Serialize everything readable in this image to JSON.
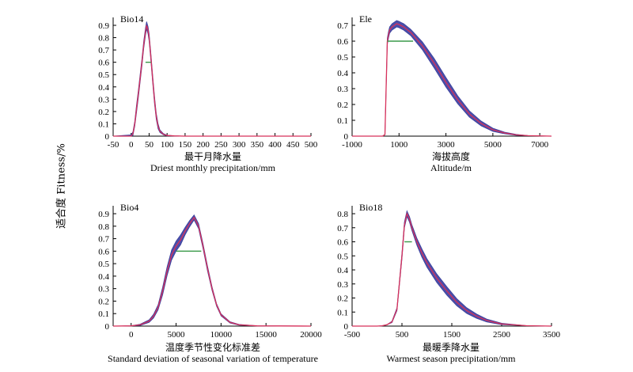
{
  "figure": {
    "ylabel": "适合度 Fitness/%"
  },
  "chart_data": [
    {
      "type": "line",
      "title": "Bio14",
      "xlabel_cn": "最干月降水量",
      "xlabel_en": "Driest monthly precipitation/mm",
      "ylabel": "适合度 Fitness/%",
      "xlim": [
        -50,
        500
      ],
      "ylim": [
        0,
        0.9
      ],
      "xticks": [
        -50,
        0,
        50,
        100,
        150,
        200,
        250,
        300,
        350,
        400,
        450,
        500
      ],
      "yticks": [
        0,
        0.1,
        0.2,
        0.3,
        0.4,
        0.5,
        0.6,
        0.7,
        0.8,
        0.9
      ],
      "grid": false,
      "threshold": {
        "y": 0.6,
        "x": [
          40,
          55
        ]
      },
      "series": [
        {
          "x": [
            -50,
            0,
            5,
            10,
            15,
            20,
            25,
            30,
            35,
            40,
            43,
            47,
            50,
            55,
            60,
            65,
            70,
            75,
            80,
            90,
            100,
            120,
            150,
            500
          ],
          "y": [
            0,
            0,
            0.02,
            0.1,
            0.22,
            0.34,
            0.47,
            0.6,
            0.74,
            0.85,
            0.9,
            0.86,
            0.8,
            0.64,
            0.46,
            0.29,
            0.16,
            0.08,
            0.04,
            0.015,
            0.005,
            0.002,
            0,
            0
          ],
          "band": [
            0,
            0.01,
            0.015,
            0.02,
            0.03,
            0.03,
            0.03,
            0.03,
            0.03,
            0.03,
            0.03,
            0.03,
            0.03,
            0.03,
            0.03,
            0.03,
            0.025,
            0.02,
            0.01,
            0.005,
            0.003,
            0,
            0,
            0
          ]
        }
      ]
    },
    {
      "type": "line",
      "title": "Ele",
      "xlabel_cn": "海拔高度",
      "xlabel_en": "Altitude/m",
      "ylabel": "适合度 Fitness/%",
      "xlim": [
        -1000,
        7500
      ],
      "ylim": [
        0,
        0.7
      ],
      "xticks": [
        -1000,
        1000,
        3000,
        5000,
        7000
      ],
      "yticks": [
        0,
        0.1,
        0.2,
        0.3,
        0.4,
        0.5,
        0.6,
        0.7
      ],
      "grid": false,
      "threshold": {
        "y": 0.6,
        "x": [
          500,
          1600
        ]
      },
      "series": [
        {
          "x": [
            -1000,
            300,
            400,
            500,
            550,
            600,
            700,
            800,
            900,
            1000,
            1200,
            1500,
            2000,
            2500,
            3000,
            3500,
            4000,
            4500,
            5000,
            5500,
            6000,
            6500,
            7500
          ],
          "y": [
            0,
            0,
            0.01,
            0.6,
            0.64,
            0.67,
            0.69,
            0.7,
            0.71,
            0.705,
            0.69,
            0.655,
            0.57,
            0.46,
            0.34,
            0.23,
            0.14,
            0.08,
            0.04,
            0.02,
            0.008,
            0.003,
            0
          ],
          "band": [
            0,
            0,
            0,
            0.02,
            0.02,
            0.02,
            0.02,
            0.02,
            0.02,
            0.02,
            0.02,
            0.02,
            0.025,
            0.03,
            0.03,
            0.025,
            0.02,
            0.015,
            0.01,
            0.005,
            0.003,
            0,
            0
          ]
        }
      ]
    },
    {
      "type": "line",
      "title": "Bio4",
      "xlabel_cn": "温度季节性变化标准差",
      "xlabel_en": "Standard deviation of seasonal variation of temperature",
      "ylabel": "适合度 Fitness/%",
      "xlim": [
        -2000,
        20000
      ],
      "ylim": [
        0,
        0.9
      ],
      "xticks": [
        0,
        5000,
        10000,
        15000,
        20000
      ],
      "yticks": [
        0,
        0.1,
        0.2,
        0.3,
        0.4,
        0.5,
        0.6,
        0.7,
        0.8,
        0.9
      ],
      "grid": false,
      "threshold": {
        "y": 0.6,
        "x": [
          5000,
          7800
        ]
      },
      "series": [
        {
          "x": [
            -2000,
            0,
            1000,
            2000,
            2500,
            3000,
            3500,
            4000,
            4500,
            5000,
            5500,
            6000,
            6500,
            7000,
            7500,
            8000,
            8500,
            9000,
            9500,
            10000,
            11000,
            12000,
            14000,
            20000
          ],
          "y": [
            0,
            0.002,
            0.01,
            0.04,
            0.08,
            0.15,
            0.28,
            0.44,
            0.57,
            0.64,
            0.69,
            0.76,
            0.82,
            0.87,
            0.8,
            0.64,
            0.46,
            0.3,
            0.17,
            0.09,
            0.03,
            0.01,
            0.002,
            0
          ],
          "band": [
            0,
            0,
            0.005,
            0.01,
            0.015,
            0.02,
            0.03,
            0.035,
            0.04,
            0.04,
            0.04,
            0.03,
            0.025,
            0.02,
            0.02,
            0.02,
            0.02,
            0.015,
            0.01,
            0.008,
            0.005,
            0.003,
            0,
            0
          ]
        }
      ]
    },
    {
      "type": "line",
      "title": "Bio18",
      "xlabel_cn": "最暖季降水量",
      "xlabel_en": "Warmest season precipitation/mm",
      "ylabel": "适合度 Fitness/%",
      "xlim": [
        -500,
        3500
      ],
      "ylim": [
        0,
        0.8
      ],
      "xticks": [
        -500,
        500,
        1500,
        2500,
        3500
      ],
      "yticks": [
        0,
        0.1,
        0.2,
        0.3,
        0.4,
        0.5,
        0.6,
        0.7,
        0.8
      ],
      "grid": false,
      "threshold": {
        "y": 0.6,
        "x": [
          550,
          700
        ]
      },
      "series": [
        {
          "x": [
            -500,
            0,
            100,
            200,
            300,
            400,
            500,
            550,
            600,
            650,
            700,
            800,
            900,
            1000,
            1200,
            1400,
            1600,
            1800,
            2000,
            2200,
            2500,
            3000,
            3500
          ],
          "y": [
            0,
            0,
            0.002,
            0.01,
            0.03,
            0.12,
            0.5,
            0.72,
            0.8,
            0.76,
            0.7,
            0.6,
            0.52,
            0.45,
            0.34,
            0.25,
            0.17,
            0.11,
            0.07,
            0.04,
            0.015,
            0.003,
            0
          ],
          "band": [
            0,
            0,
            0,
            0,
            0.005,
            0.01,
            0.02,
            0.02,
            0.02,
            0.02,
            0.02,
            0.025,
            0.03,
            0.03,
            0.03,
            0.03,
            0.025,
            0.02,
            0.015,
            0.01,
            0.005,
            0,
            0
          ]
        }
      ]
    }
  ]
}
